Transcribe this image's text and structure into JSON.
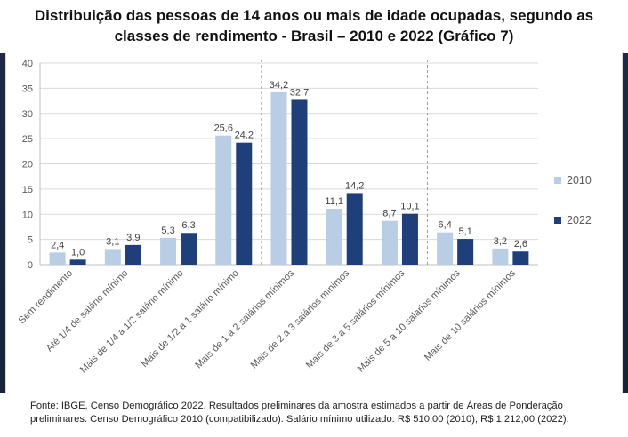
{
  "title": "Distribuição das pessoas de 14 anos ou mais de idade ocupadas, segundo as classes de rendimento - Brasil – 2010 e 2022 (Gráfico 7)",
  "source": "Fonte: IBGE, Censo Demográfico 2022. Resultados preliminares da amostra estimados a partir de Áreas de Ponderação preliminares. Censo Demográfico 2010 (compatibilizado). Salário mínimo utilizado: R$ 510,00 (2010); R$ 1.212,00 (2022).",
  "chart_data": {
    "type": "bar",
    "title": "Distribuição das pessoas de 14 anos ou mais de idade ocupadas, segundo as classes de rendimento - Brasil – 2010 e 2022 (Gráfico 7)",
    "xlabel": "",
    "ylabel": "",
    "ylim": [
      0,
      40
    ],
    "yticks": [
      "0",
      "5",
      "10",
      "15",
      "20",
      "25",
      "30",
      "35",
      "40"
    ],
    "grid": true,
    "legend": "right",
    "categories": [
      "Sem rendimento",
      "Até 1/4 de salário mínimo",
      "Mais de 1/4 a 1/2 salário mínimo",
      "Mais de 1/2 a 1 salário mínimo",
      "Mais de 1 a 2 salários mínimos",
      "Mais de 2 a 3 salários mínimos",
      "Mais de 3 a 5 salários mínimos",
      "Mais de 5 a 10 salários mínimos",
      "Mais de 10 salários mínimos"
    ],
    "series": [
      {
        "name": "2010",
        "color": "#b9cde5",
        "values": [
          2.4,
          3.1,
          5.3,
          25.6,
          34.2,
          11.1,
          8.7,
          6.4,
          3.2
        ],
        "labels": [
          "2,4",
          "3,1",
          "5,3",
          "25,6",
          "34,2",
          "11,1",
          "8,7",
          "6,4",
          "3,2"
        ]
      },
      {
        "name": "2022",
        "color": "#1f3f7a",
        "values": [
          1.0,
          3.9,
          6.3,
          24.2,
          32.7,
          14.2,
          10.1,
          5.1,
          2.6
        ],
        "labels": [
          "1,0",
          "3,9",
          "6,3",
          "24,2",
          "32,7",
          "14,2",
          "10,1",
          "5,1",
          "2,6"
        ]
      }
    ],
    "separators_after_category_index": [
      3,
      6
    ]
  }
}
